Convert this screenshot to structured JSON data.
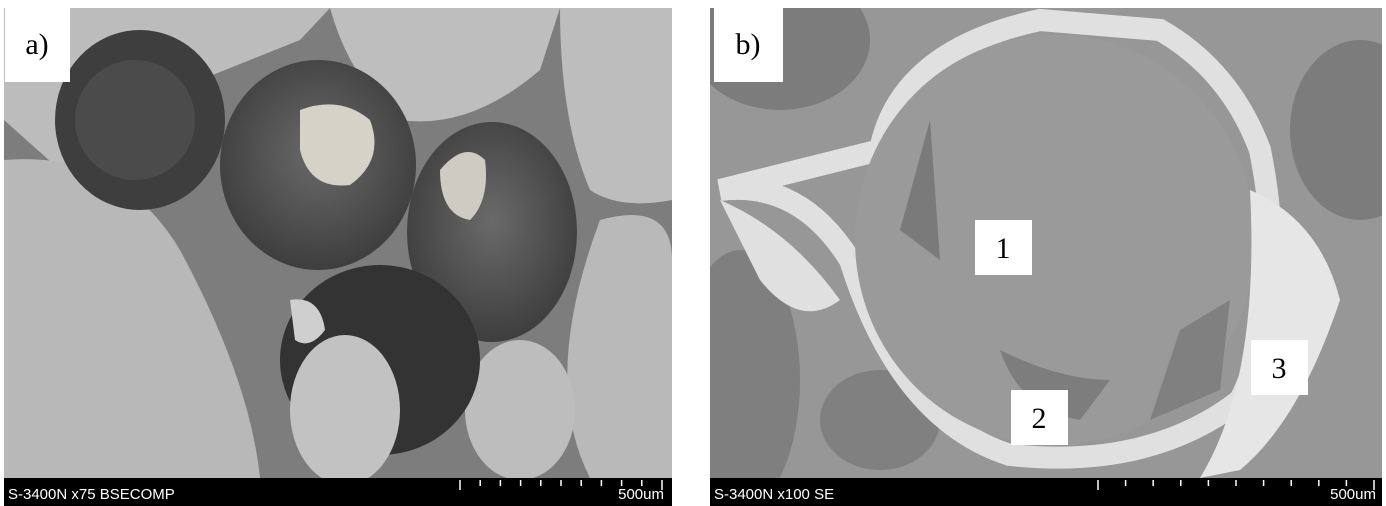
{
  "panels": [
    {
      "label": "a)",
      "caption": "S-3400N x75 BSECOMP",
      "scale": "500um"
    },
    {
      "label": "b)",
      "caption": "S-3400N x100 SE",
      "scale": "500um",
      "markers": [
        "1",
        "2",
        "3"
      ]
    }
  ]
}
